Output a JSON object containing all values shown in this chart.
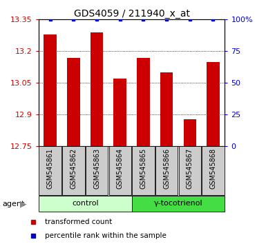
{
  "title": "GDS4059 / 211940_x_at",
  "samples": [
    "GSM545861",
    "GSM545862",
    "GSM545863",
    "GSM545864",
    "GSM545865",
    "GSM545866",
    "GSM545867",
    "GSM545868"
  ],
  "red_values": [
    13.28,
    13.17,
    13.29,
    13.07,
    13.17,
    13.1,
    12.88,
    13.15
  ],
  "blue_values": [
    100,
    100,
    100,
    100,
    100,
    100,
    100,
    100
  ],
  "ylim_left": [
    12.75,
    13.35
  ],
  "ylim_right": [
    0,
    100
  ],
  "yticks_left": [
    12.75,
    12.9,
    13.05,
    13.2,
    13.35
  ],
  "yticks_right": [
    0,
    25,
    50,
    75,
    100
  ],
  "ytick_labels_right": [
    "0",
    "25",
    "50",
    "75",
    "100%"
  ],
  "groups": [
    {
      "label": "control",
      "indices": [
        0,
        1,
        2,
        3
      ],
      "color": "#CCFFCC"
    },
    {
      "label": "γ-tocotrienol",
      "indices": [
        4,
        5,
        6,
        7
      ],
      "color": "#44DD44"
    }
  ],
  "bar_color": "#CC0000",
  "dot_color": "#0000CC",
  "grid_color": "#000000",
  "sample_box_color": "#CCCCCC",
  "legend_items": [
    {
      "color": "#CC0000",
      "marker": "s",
      "label": "transformed count"
    },
    {
      "color": "#0000CC",
      "marker": "s",
      "label": "percentile rank within the sample"
    }
  ],
  "title_fontsize": 10,
  "tick_fontsize": 8,
  "sample_fontsize": 7,
  "group_fontsize": 8,
  "legend_fontsize": 7.5
}
